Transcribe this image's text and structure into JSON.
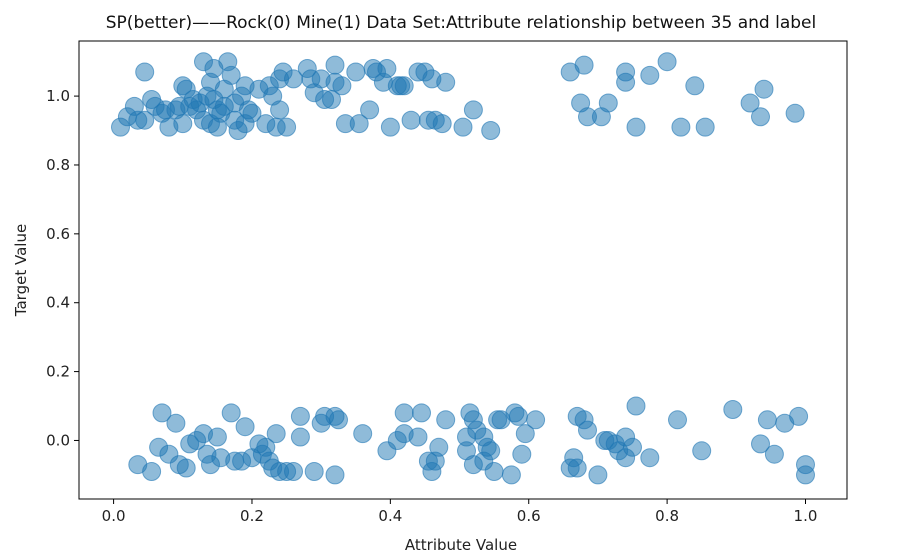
{
  "chart_data": {
    "type": "scatter",
    "title": "SP(better)——Rock(0) Mine(1) Data Set:Attribute relationship between 35 and label",
    "xlabel": "Attribute Value",
    "ylabel": "Target Value",
    "xlim": [
      -0.05,
      1.06
    ],
    "ylim": [
      -0.17,
      1.16
    ],
    "xticks": [
      "0.0",
      "0.2",
      "0.4",
      "0.6",
      "0.8",
      "1.0"
    ],
    "yticks": [
      "0.0",
      "0.2",
      "0.4",
      "0.6",
      "0.8",
      "1.0"
    ],
    "grid": false,
    "marker_color": "#1f77b4",
    "marker_alpha": 0.5,
    "series": [
      {
        "points": [
          [
            0.01,
            0.91
          ],
          [
            0.02,
            0.94
          ],
          [
            0.03,
            0.97
          ],
          [
            0.035,
            0.93
          ],
          [
            0.045,
            0.93
          ],
          [
            0.045,
            1.07
          ],
          [
            0.055,
            0.99
          ],
          [
            0.06,
            0.97
          ],
          [
            0.07,
            0.95
          ],
          [
            0.075,
            0.96
          ],
          [
            0.08,
            0.91
          ],
          [
            0.09,
            0.96
          ],
          [
            0.095,
            0.97
          ],
          [
            0.1,
            0.92
          ],
          [
            0.1,
            1.03
          ],
          [
            0.105,
            1.02
          ],
          [
            0.11,
            0.97
          ],
          [
            0.115,
            0.99
          ],
          [
            0.12,
            0.96
          ],
          [
            0.125,
            0.98
          ],
          [
            0.13,
            0.93
          ],
          [
            0.13,
            1.1
          ],
          [
            0.135,
            1.0
          ],
          [
            0.14,
            0.92
          ],
          [
            0.14,
            1.04
          ],
          [
            0.145,
            0.99
          ],
          [
            0.145,
            1.08
          ],
          [
            0.15,
            0.91
          ],
          [
            0.15,
            0.96
          ],
          [
            0.155,
            0.95
          ],
          [
            0.16,
            1.02
          ],
          [
            0.16,
            0.97
          ],
          [
            0.165,
            1.1
          ],
          [
            0.17,
            1.06
          ],
          [
            0.175,
            0.93
          ],
          [
            0.175,
            0.98
          ],
          [
            0.18,
            0.9
          ],
          [
            0.185,
            1.0
          ],
          [
            0.19,
            0.92
          ],
          [
            0.19,
            1.03
          ],
          [
            0.195,
            0.96
          ],
          [
            0.2,
            0.95
          ],
          [
            0.21,
            1.02
          ],
          [
            0.22,
            0.92
          ],
          [
            0.225,
            1.03
          ],
          [
            0.23,
            1.0
          ],
          [
            0.235,
            0.91
          ],
          [
            0.24,
            0.96
          ],
          [
            0.24,
            1.05
          ],
          [
            0.245,
            1.07
          ],
          [
            0.25,
            0.91
          ],
          [
            0.26,
            1.05
          ],
          [
            0.28,
            1.08
          ],
          [
            0.285,
            1.05
          ],
          [
            0.29,
            1.01
          ],
          [
            0.3,
            1.05
          ],
          [
            0.305,
            0.99
          ],
          [
            0.315,
            0.99
          ],
          [
            0.32,
            1.04
          ],
          [
            0.32,
            1.09
          ],
          [
            0.33,
            1.03
          ],
          [
            0.335,
            0.92
          ],
          [
            0.35,
            1.07
          ],
          [
            0.355,
            0.92
          ],
          [
            0.37,
            0.96
          ],
          [
            0.375,
            1.08
          ],
          [
            0.38,
            1.07
          ],
          [
            0.39,
            1.04
          ],
          [
            0.395,
            1.08
          ],
          [
            0.4,
            0.91
          ],
          [
            0.41,
            1.03
          ],
          [
            0.415,
            1.03
          ],
          [
            0.42,
            1.03
          ],
          [
            0.43,
            0.93
          ],
          [
            0.44,
            1.07
          ],
          [
            0.45,
            1.07
          ],
          [
            0.455,
            0.93
          ],
          [
            0.46,
            1.05
          ],
          [
            0.465,
            0.93
          ],
          [
            0.475,
            0.92
          ],
          [
            0.48,
            1.04
          ],
          [
            0.505,
            0.91
          ],
          [
            0.52,
            0.96
          ],
          [
            0.545,
            0.9
          ],
          [
            0.66,
            1.07
          ],
          [
            0.675,
            0.98
          ],
          [
            0.68,
            1.09
          ],
          [
            0.685,
            0.94
          ],
          [
            0.705,
            0.94
          ],
          [
            0.715,
            0.98
          ],
          [
            0.74,
            1.04
          ],
          [
            0.74,
            1.07
          ],
          [
            0.755,
            0.91
          ],
          [
            0.775,
            1.06
          ],
          [
            0.8,
            1.1
          ],
          [
            0.82,
            0.91
          ],
          [
            0.84,
            1.03
          ],
          [
            0.855,
            0.91
          ],
          [
            0.92,
            0.98
          ],
          [
            0.935,
            0.94
          ],
          [
            0.94,
            1.02
          ],
          [
            0.985,
            0.95
          ]
        ]
      },
      {
        "points": [
          [
            0.035,
            -0.07
          ],
          [
            0.055,
            -0.09
          ],
          [
            0.065,
            -0.02
          ],
          [
            0.07,
            0.08
          ],
          [
            0.08,
            -0.04
          ],
          [
            0.09,
            0.05
          ],
          [
            0.095,
            -0.07
          ],
          [
            0.105,
            -0.08
          ],
          [
            0.11,
            -0.01
          ],
          [
            0.12,
            0.0
          ],
          [
            0.13,
            0.02
          ],
          [
            0.135,
            -0.04
          ],
          [
            0.14,
            -0.07
          ],
          [
            0.15,
            0.01
          ],
          [
            0.155,
            -0.05
          ],
          [
            0.17,
            0.08
          ],
          [
            0.175,
            -0.06
          ],
          [
            0.185,
            -0.06
          ],
          [
            0.19,
            0.04
          ],
          [
            0.2,
            -0.05
          ],
          [
            0.21,
            -0.01
          ],
          [
            0.215,
            -0.04
          ],
          [
            0.22,
            -0.02
          ],
          [
            0.225,
            -0.06
          ],
          [
            0.23,
            -0.08
          ],
          [
            0.235,
            0.02
          ],
          [
            0.24,
            -0.09
          ],
          [
            0.25,
            -0.09
          ],
          [
            0.26,
            -0.09
          ],
          [
            0.27,
            0.07
          ],
          [
            0.27,
            0.01
          ],
          [
            0.29,
            -0.09
          ],
          [
            0.3,
            0.05
          ],
          [
            0.305,
            0.07
          ],
          [
            0.32,
            -0.1
          ],
          [
            0.32,
            0.07
          ],
          [
            0.325,
            0.06
          ],
          [
            0.36,
            0.02
          ],
          [
            0.395,
            -0.03
          ],
          [
            0.41,
            0.0
          ],
          [
            0.42,
            0.08
          ],
          [
            0.42,
            0.02
          ],
          [
            0.44,
            0.01
          ],
          [
            0.445,
            0.08
          ],
          [
            0.455,
            -0.06
          ],
          [
            0.46,
            -0.09
          ],
          [
            0.465,
            -0.06
          ],
          [
            0.47,
            -0.02
          ],
          [
            0.48,
            0.06
          ],
          [
            0.51,
            0.01
          ],
          [
            0.51,
            -0.03
          ],
          [
            0.515,
            0.08
          ],
          [
            0.52,
            -0.07
          ],
          [
            0.52,
            0.06
          ],
          [
            0.525,
            0.03
          ],
          [
            0.535,
            -0.06
          ],
          [
            0.535,
            0.01
          ],
          [
            0.54,
            -0.02
          ],
          [
            0.545,
            -0.03
          ],
          [
            0.55,
            -0.09
          ],
          [
            0.555,
            0.06
          ],
          [
            0.56,
            0.06
          ],
          [
            0.575,
            -0.1
          ],
          [
            0.58,
            0.08
          ],
          [
            0.585,
            0.07
          ],
          [
            0.59,
            -0.04
          ],
          [
            0.595,
            0.02
          ],
          [
            0.61,
            0.06
          ],
          [
            0.66,
            -0.08
          ],
          [
            0.665,
            -0.05
          ],
          [
            0.67,
            -0.08
          ],
          [
            0.67,
            0.07
          ],
          [
            0.68,
            0.06
          ],
          [
            0.685,
            0.03
          ],
          [
            0.7,
            -0.1
          ],
          [
            0.71,
            0.0
          ],
          [
            0.715,
            0.0
          ],
          [
            0.725,
            -0.01
          ],
          [
            0.73,
            -0.03
          ],
          [
            0.74,
            0.01
          ],
          [
            0.74,
            -0.05
          ],
          [
            0.75,
            -0.02
          ],
          [
            0.755,
            0.1
          ],
          [
            0.775,
            -0.05
          ],
          [
            0.815,
            0.06
          ],
          [
            0.85,
            -0.03
          ],
          [
            0.895,
            0.09
          ],
          [
            0.935,
            -0.01
          ],
          [
            0.945,
            0.06
          ],
          [
            0.955,
            -0.04
          ],
          [
            0.97,
            0.05
          ],
          [
            0.99,
            0.07
          ],
          [
            1.0,
            -0.07
          ],
          [
            1.0,
            -0.1
          ]
        ]
      }
    ]
  }
}
